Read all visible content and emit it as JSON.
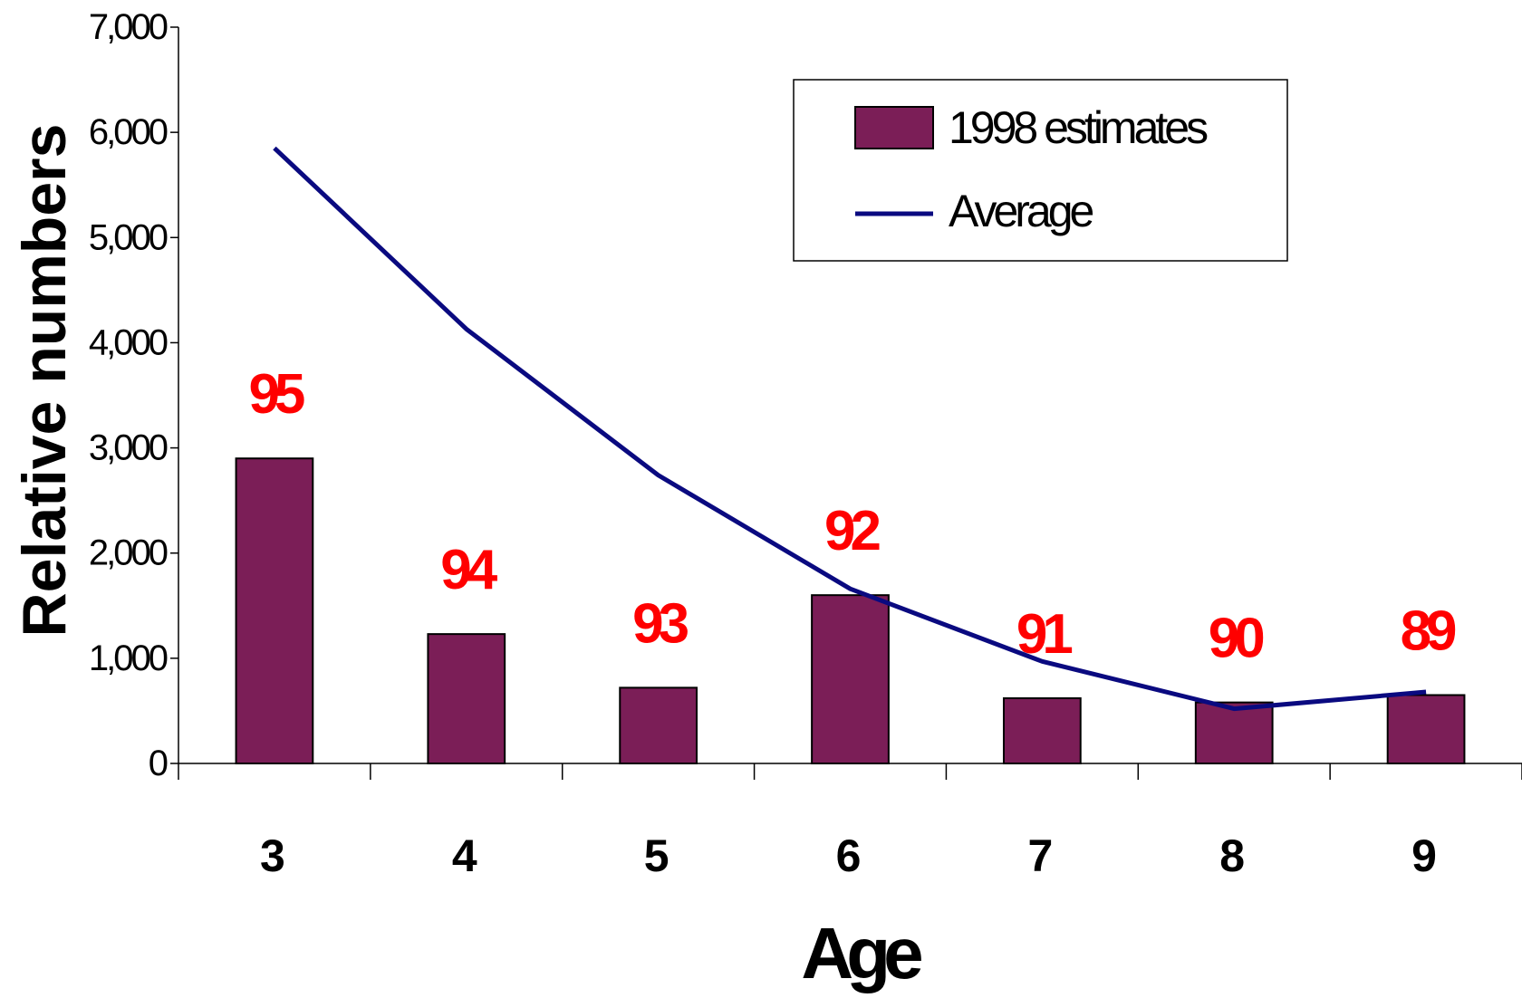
{
  "chart_data": {
    "type": "bar",
    "categories": [
      "3",
      "4",
      "5",
      "6",
      "7",
      "8",
      "9"
    ],
    "series": [
      {
        "name": "1998 estimates",
        "kind": "bar",
        "color": "#7B1E57",
        "values": [
          2900,
          1230,
          720,
          1600,
          620,
          580,
          650
        ]
      },
      {
        "name": "Average",
        "kind": "line",
        "color": "#0A0A80",
        "values": [
          5850,
          4130,
          2740,
          1660,
          970,
          520,
          680
        ]
      }
    ],
    "data_labels": [
      "95",
      "94",
      "93",
      "92",
      "91",
      "90",
      "89"
    ],
    "data_label_color": "#FF0000",
    "xlabel": "Age",
    "ylabel": "Relative numbers",
    "ylim": [
      0,
      7000
    ],
    "yticks": [
      0,
      1000,
      2000,
      3000,
      4000,
      5000,
      6000,
      7000
    ],
    "ytick_labels": [
      "0",
      "1,000",
      "2,000",
      "3,000",
      "4,000",
      "5,000",
      "6,000",
      "7,000"
    ],
    "grid": false,
    "legend_position": "top-right"
  }
}
